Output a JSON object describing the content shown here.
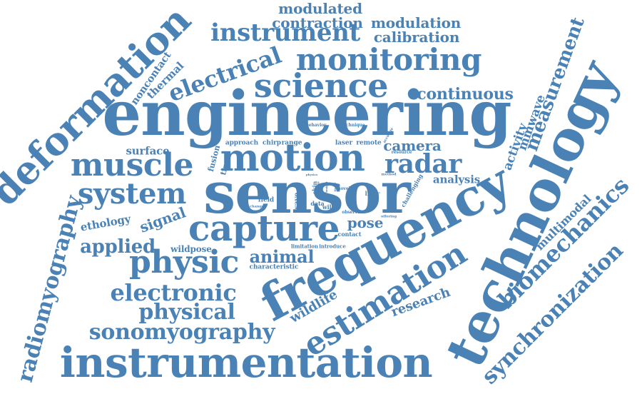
{
  "colors": {
    "text": "#4a82b6",
    "background": "#ffffff"
  },
  "words": {
    "engineering": "engineering",
    "sensor": "sensor",
    "frequency": "frequency",
    "technology": "technology",
    "instrumentation": "instrumentation",
    "deformation": "deformation",
    "motion": "motion",
    "capture": "capture",
    "science": "science",
    "muscle": "muscle",
    "system": "system",
    "monitoring": "monitoring",
    "instrument": "instrument",
    "estimation": "estimation",
    "physic": "physic",
    "radar": "radar",
    "electrical": "electrical",
    "sonomyography": "sonomyography",
    "electronic": "electronic",
    "physical": "physical",
    "radiomyography": "radiomyography",
    "synchronization": "synchronization",
    "biomechanics": "biomechanics",
    "measurement": "measurement",
    "applied": "applied",
    "animal": "animal",
    "continuous": "continuous",
    "modulated": "modulated",
    "contraction": "contraction",
    "modulation": "modulation",
    "calibration": "calibration",
    "camera": "camera",
    "pose": "pose",
    "signal": "signal",
    "research": "research",
    "wildlife": "wildlife",
    "analysis": "analysis",
    "mmwave": "mmwave",
    "activity": "activity",
    "multimodal": "multimodal",
    "ethology": "ethology",
    "surface": "surface",
    "thermal": "thermal",
    "noncontact": "noncontact",
    "wildpose": "wildpose",
    "characteristic": "characteristic",
    "fusion": "fusion",
    "time": "time",
    "approach": "approach",
    "chirp": "chirp",
    "range": "range",
    "laser": "laser",
    "remote": "remote",
    "wave": "wave",
    "skin": "skin",
    "field": "field",
    "data": "data",
    "wild": "wild",
    "lidar": "lidar",
    "contact": "contact",
    "limitation": "limitation",
    "introduce": "introduce",
    "behavior": "behavior",
    "technique": "technique",
    "resource": "resource",
    "challenging": "challenging",
    "method": "method",
    "offering": "offering",
    "novel": "novel",
    "observe": "observe",
    "change": "change",
    "accurate": "accurate",
    "physics": "physics",
    "biology": "biology",
    "insight": "insight",
    "tissue": "tissue"
  }
}
